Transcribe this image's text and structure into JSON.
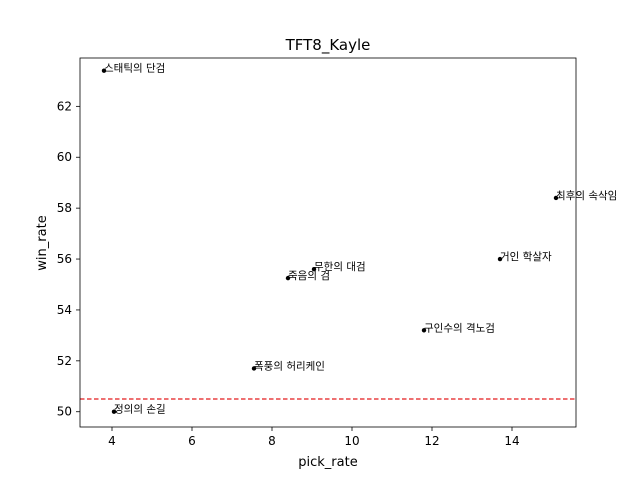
{
  "chart_data": {
    "type": "scatter",
    "title": "TFT8_Kayle",
    "xlabel": "pick_rate",
    "ylabel": "win_rate",
    "xlim": [
      3.2,
      15.6
    ],
    "ylim": [
      49.4,
      63.9
    ],
    "xticks": [
      4,
      6,
      8,
      10,
      12,
      14
    ],
    "yticks": [
      50,
      52,
      54,
      56,
      58,
      60,
      62
    ],
    "reference_line": {
      "y": 50.5,
      "color": "#e31a1c",
      "style": "dashed"
    },
    "point_color": "#000000",
    "points": [
      {
        "label": "스태틱의 단검",
        "x": 3.8,
        "y": 63.4
      },
      {
        "label": "최후의 속삭임",
        "x": 15.1,
        "y": 58.4
      },
      {
        "label": "거인 학살자",
        "x": 13.7,
        "y": 56.0
      },
      {
        "label": "무한의 대검",
        "x": 9.05,
        "y": 55.6
      },
      {
        "label": "죽음의 검",
        "x": 8.4,
        "y": 55.25
      },
      {
        "label": "구인수의 격노검",
        "x": 11.8,
        "y": 53.2
      },
      {
        "label": "폭풍의 허리케인",
        "x": 7.55,
        "y": 51.7
      },
      {
        "label": "정의의 손길",
        "x": 4.05,
        "y": 50.0
      }
    ]
  }
}
